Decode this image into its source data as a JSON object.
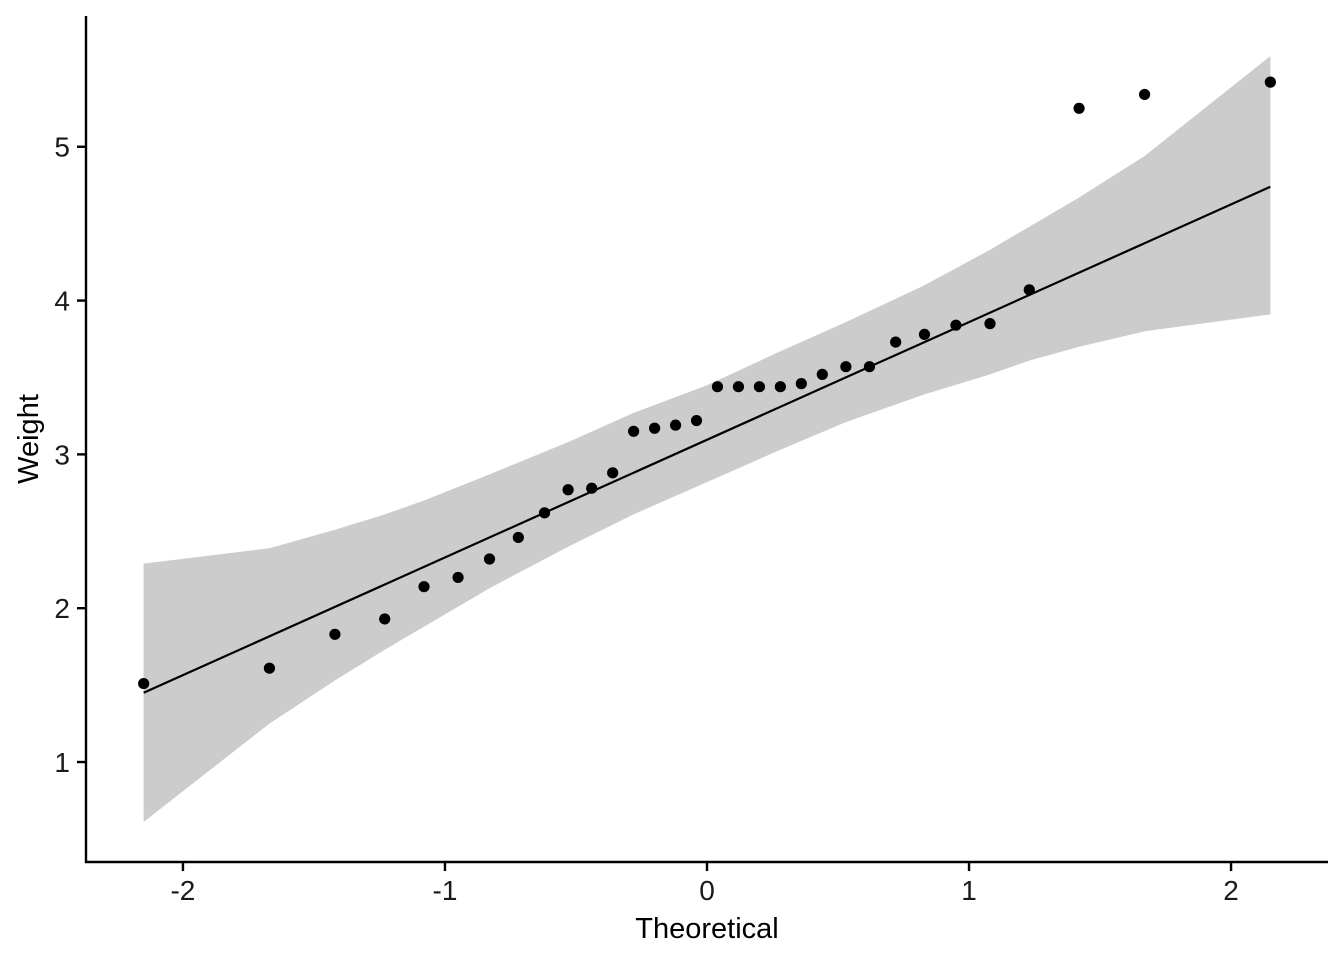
{
  "chart_data": {
    "type": "scatter",
    "subtype": "qq-plot",
    "title": "",
    "xlabel": "Theoretical",
    "ylabel": "Weight",
    "xlim": [
      -2.37,
      2.37
    ],
    "ylim": [
      0.35,
      5.85
    ],
    "x_ticks": [
      {
        "value": -2,
        "label": "-2"
      },
      {
        "value": -1,
        "label": "-1"
      },
      {
        "value": 0,
        "label": "0"
      },
      {
        "value": 1,
        "label": "1"
      },
      {
        "value": 2,
        "label": "2"
      }
    ],
    "y_ticks": [
      {
        "value": 1,
        "label": "1"
      },
      {
        "value": 2,
        "label": "2"
      },
      {
        "value": 3,
        "label": "3"
      },
      {
        "value": 4,
        "label": "4"
      },
      {
        "value": 5,
        "label": "5"
      }
    ],
    "grid": false,
    "points": [
      {
        "x": -2.15,
        "y": 1.51
      },
      {
        "x": -1.67,
        "y": 1.61
      },
      {
        "x": -1.42,
        "y": 1.83
      },
      {
        "x": -1.23,
        "y": 1.93
      },
      {
        "x": -1.08,
        "y": 2.14
      },
      {
        "x": -0.95,
        "y": 2.2
      },
      {
        "x": -0.83,
        "y": 2.32
      },
      {
        "x": -0.72,
        "y": 2.46
      },
      {
        "x": -0.62,
        "y": 2.62
      },
      {
        "x": -0.53,
        "y": 2.77
      },
      {
        "x": -0.44,
        "y": 2.78
      },
      {
        "x": -0.36,
        "y": 2.88
      },
      {
        "x": -0.28,
        "y": 3.15
      },
      {
        "x": -0.2,
        "y": 3.17
      },
      {
        "x": -0.12,
        "y": 3.19
      },
      {
        "x": -0.04,
        "y": 3.22
      },
      {
        "x": 0.04,
        "y": 3.44
      },
      {
        "x": 0.12,
        "y": 3.44
      },
      {
        "x": 0.2,
        "y": 3.44
      },
      {
        "x": 0.28,
        "y": 3.44
      },
      {
        "x": 0.36,
        "y": 3.46
      },
      {
        "x": 0.44,
        "y": 3.52
      },
      {
        "x": 0.53,
        "y": 3.57
      },
      {
        "x": 0.62,
        "y": 3.57
      },
      {
        "x": 0.72,
        "y": 3.73
      },
      {
        "x": 0.83,
        "y": 3.78
      },
      {
        "x": 0.95,
        "y": 3.84
      },
      {
        "x": 1.08,
        "y": 3.85
      },
      {
        "x": 1.23,
        "y": 4.07
      },
      {
        "x": 1.42,
        "y": 5.25
      },
      {
        "x": 1.67,
        "y": 5.34
      },
      {
        "x": 2.15,
        "y": 5.42
      }
    ],
    "reference_line": {
      "from": {
        "x": -2.15,
        "y": 1.45
      },
      "to": {
        "x": 2.15,
        "y": 4.74
      }
    },
    "confidence_band": {
      "x": [
        -2.15,
        -1.67,
        -1.42,
        -1.23,
        -1.08,
        -0.83,
        -0.53,
        -0.28,
        0.0,
        0.28,
        0.53,
        0.83,
        1.08,
        1.23,
        1.42,
        1.67,
        2.15
      ],
      "lower": [
        0.61,
        1.25,
        1.53,
        1.73,
        1.88,
        2.13,
        2.4,
        2.61,
        2.82,
        3.03,
        3.21,
        3.39,
        3.52,
        3.61,
        3.7,
        3.8,
        3.91
      ],
      "upper": [
        2.29,
        2.39,
        2.51,
        2.61,
        2.7,
        2.87,
        3.08,
        3.27,
        3.45,
        3.67,
        3.86,
        4.1,
        4.33,
        4.48,
        4.67,
        4.94,
        5.59
      ]
    },
    "colors": {
      "points": "#000000",
      "line": "#000000",
      "band": "#cccccc",
      "axis": "#000000"
    }
  }
}
